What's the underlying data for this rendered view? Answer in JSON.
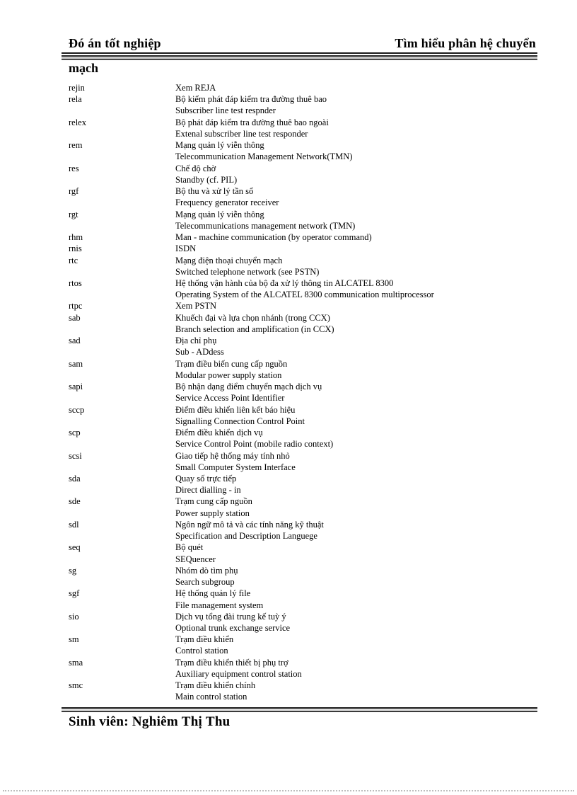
{
  "page": {
    "header": {
      "left": "Đó án tốt nghiệp",
      "right": "Tìm hiểu phân hệ chuyển",
      "wrap_word": "mạch"
    },
    "footer": {
      "text": "Sinh viên: Nghiêm Thị Thu"
    }
  },
  "colors": {
    "text": "#000000",
    "rule": "#1a1a1a",
    "dotted_line": "#bdbdbd",
    "background": "#ffffff"
  },
  "glossary": {
    "entries": [
      {
        "term": "rejin",
        "defs": [
          "Xem REJA"
        ]
      },
      {
        "term": "rela",
        "defs": [
          "Bộ kiểm  phát đáp kiểm  tra đường thuê bao",
          "Subscriber line  test respnder"
        ]
      },
      {
        "term": "relex",
        "defs": [
          "Bộ phát đáp kiểm  tra đường thuê bao ngoài",
          "Extenal  subscriber line test responder"
        ]
      },
      {
        "term": "rem",
        "defs": [
          "Mạng quản lý viễn thông",
          "Telecommunication  Management Network(TMN)"
        ]
      },
      {
        "term": "res",
        "defs": [
          "Chế độ chờ",
          "Standby (cf. PIL)"
        ]
      },
      {
        "term": "rgf",
        "defs": [
          "Bộ thu và xử lý tần số",
          "Frequency generator receiver"
        ]
      },
      {
        "term": "rgt",
        "defs": [
          "Mạng quản lý viễn thông",
          "Telecommunications  management  network (TMN)"
        ]
      },
      {
        "term": "rhm",
        "defs": [
          "Man - machine  communication  (by operator command)"
        ]
      },
      {
        "term": "rnis",
        "defs": [
          "ISDN"
        ]
      },
      {
        "term": "rtc",
        "defs": [
          "Mạng điện thoại chuyển mạch",
          "Switched telephone network (see PSTN)"
        ]
      },
      {
        "term": "rtos",
        "defs": [
          "Hệ thống vận hành của bộ đa xử lý thông tin ALCATEL  8300",
          "Operating System of the ALCATEL  8300  communication  multiprocessor"
        ]
      },
      {
        "term": "rtpc",
        "defs": [
          "Xem PSTN"
        ]
      },
      {
        "term": "sab",
        "defs": [
          "Khuếch đại và lựa chọn nhánh (trong CCX)",
          "Branch selection and amplification  (in CCX)"
        ]
      },
      {
        "term": "sad",
        "defs": [
          "Địa chỉ phụ",
          "Sub - ADdess"
        ]
      },
      {
        "term": "sam",
        "defs": [
          "Trạm  điều biến cung cấp nguồn",
          "Modular power supply station"
        ]
      },
      {
        "term": "sapi",
        "defs": [
          "Bộ nhận dạng điểm  chuyển mạch dịch vụ",
          "Service Access Point Identifier"
        ]
      },
      {
        "term": "sccp",
        "defs": [
          "Điểm  điều khiển liên kết báo hiệu",
          "Signalling Connection Control Point"
        ]
      },
      {
        "term": "scp",
        "defs": [
          "Điểm  điều khiển dịch vụ",
          "Service Control Point (mobile  radio context)"
        ]
      },
      {
        "term": "scsi",
        "defs": [
          "Giao tiếp hệ thống máy tính nhỏ",
          "Small  Computer System Interface"
        ]
      },
      {
        "term": "sda",
        "defs": [
          "Quay số trực tiếp",
          "Direct  dialling - in"
        ]
      },
      {
        "term": "sde",
        "defs": [
          "Trạm cung cấp nguồn",
          "Power supply station"
        ]
      },
      {
        "term": "sdl",
        "defs": [
          "Ngôn ngữ mô tả và các tính năng kỹ thuật",
          "Specification  and Description Languege"
        ]
      },
      {
        "term": "seq",
        "defs": [
          "Bộ quét",
          "SEQuencer"
        ]
      },
      {
        "term": "sg",
        "defs": [
          "Nhóm  dò tìm phụ",
          "Search subgroup"
        ]
      },
      {
        "term": "sgf",
        "defs": [
          "Hệ thống quản lý file",
          "File  management  system"
        ]
      },
      {
        "term": "sio",
        "defs": [
          "Dịch vụ tổng đài trung kế tuỳ ý",
          "Optional trunk exchange service"
        ]
      },
      {
        "term": "sm",
        "defs": [
          "Trạm  điều khiển",
          "Control station"
        ]
      },
      {
        "term": "sma",
        "defs": [
          "Trạm  điều khiển thiết bị phụ trợ",
          "Auxiliary  equipment control station"
        ]
      },
      {
        "term": "smc",
        "defs": [
          "Trạm  điều khiển chính",
          "Main control station"
        ]
      }
    ]
  }
}
